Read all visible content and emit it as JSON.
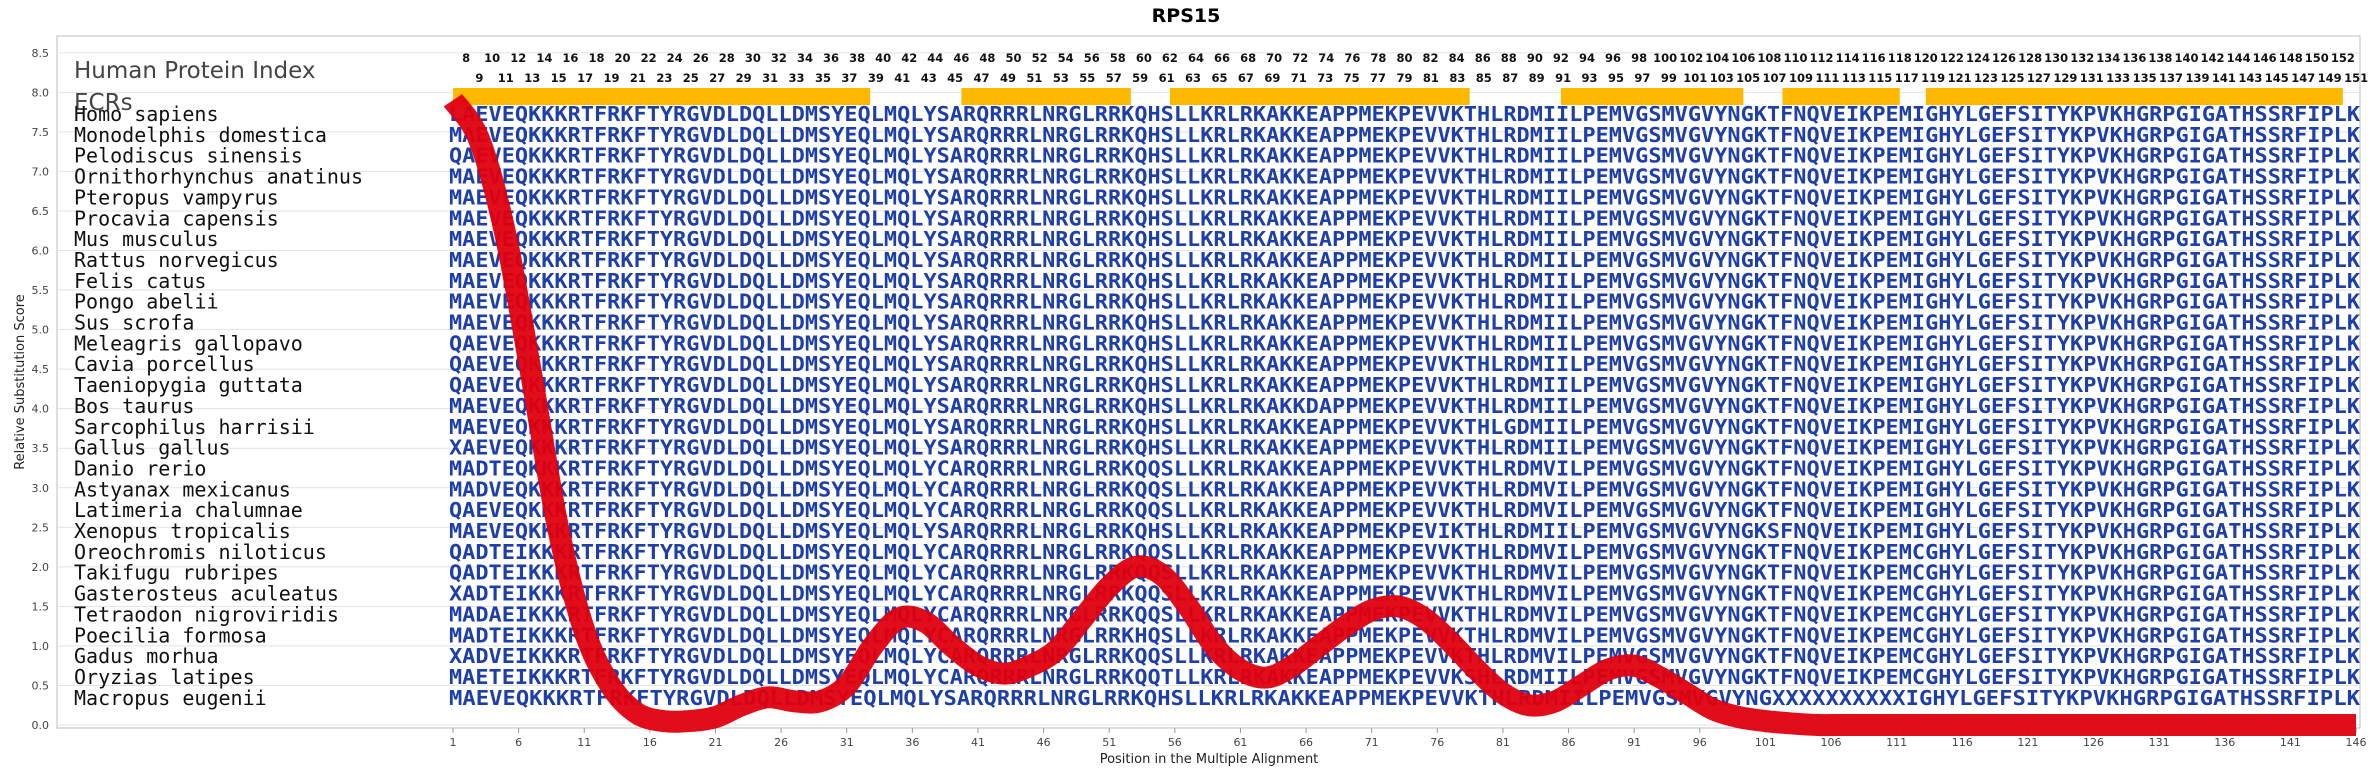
{
  "chart_data": {
    "type": "line",
    "title": "RPS15",
    "xlabel": "Position in the Multiple Alignment",
    "ylabel": "Relative Substitution Score",
    "ylim": [
      0,
      8.7
    ],
    "xlim": [
      1,
      146
    ],
    "grid": true,
    "yticks": [
      "0.0",
      "0.5",
      "1.0",
      "1.5",
      "2.0",
      "2.5",
      "3.0",
      "3.5",
      "4.0",
      "4.5",
      "5.0",
      "5.5",
      "6.0",
      "6.5",
      "7.0",
      "7.5",
      "8.0",
      "8.5"
    ],
    "xticks": [
      "1",
      "6",
      "11",
      "16",
      "21",
      "26",
      "31",
      "36",
      "41",
      "46",
      "51",
      "56",
      "61",
      "66",
      "71",
      "76",
      "81",
      "86",
      "91",
      "96",
      "101",
      "106",
      "111",
      "116",
      "121",
      "126",
      "131",
      "136",
      "141",
      "146"
    ],
    "header_label": "Human Protein Index",
    "ecr_label": "ECRs",
    "position_numbers_top": [
      "8",
      "10",
      "12",
      "14",
      "16",
      "18",
      "20",
      "22",
      "24",
      "26",
      "28",
      "30",
      "32",
      "34",
      "36",
      "38",
      "40",
      "42",
      "44",
      "46",
      "48",
      "50",
      "52",
      "54",
      "56",
      "58",
      "60",
      "62",
      "64",
      "66",
      "68",
      "70",
      "72",
      "74",
      "76",
      "78",
      "80",
      "82",
      "84",
      "86",
      "88",
      "90",
      "92",
      "94",
      "96",
      "98",
      "100",
      "102",
      "104",
      "106",
      "108",
      "110",
      "112",
      "114",
      "116",
      "118",
      "120",
      "122",
      "124",
      "126",
      "128",
      "130",
      "132",
      "134",
      "136",
      "138",
      "140",
      "142",
      "144",
      "146",
      "148",
      "150",
      "152"
    ],
    "position_numbers_bottom": [
      "9",
      "11",
      "13",
      "15",
      "17",
      "19",
      "21",
      "23",
      "25",
      "27",
      "29",
      "31",
      "33",
      "35",
      "37",
      "39",
      "41",
      "43",
      "45",
      "47",
      "49",
      "51",
      "53",
      "55",
      "57",
      "59",
      "61",
      "63",
      "65",
      "67",
      "69",
      "71",
      "73",
      "75",
      "77",
      "79",
      "81",
      "83",
      "85",
      "87",
      "89",
      "91",
      "93",
      "95",
      "97",
      "99",
      "101",
      "103",
      "105",
      "107",
      "109",
      "111",
      "113",
      "115",
      "117",
      "119",
      "121",
      "123",
      "125",
      "127",
      "129",
      "131",
      "133",
      "135",
      "137",
      "139",
      "141",
      "143",
      "145",
      "147",
      "149",
      "151"
    ],
    "ecr_regions": [
      [
        7,
        39
      ],
      [
        46,
        59
      ],
      [
        62,
        85
      ],
      [
        92,
        106
      ],
      [
        109,
        118
      ],
      [
        120,
        152
      ]
    ],
    "conservation_curve": {
      "x": [
        1,
        3,
        5,
        7,
        9,
        11,
        13,
        15,
        17,
        19,
        21,
        23,
        25,
        27,
        29,
        31,
        33,
        35,
        37,
        39,
        41,
        43,
        45,
        47,
        49,
        51,
        53,
        55,
        57,
        59,
        61,
        63,
        65,
        67,
        69,
        71,
        73,
        75,
        77,
        79,
        81,
        83,
        85,
        87,
        89,
        91,
        93,
        95,
        97,
        99,
        101,
        103,
        105,
        107,
        109,
        111,
        113,
        115,
        117,
        119,
        121,
        123,
        125,
        127,
        129,
        131,
        133,
        135,
        137,
        139,
        141,
        143,
        146
      ],
      "y": [
        7.9,
        7.4,
        6.2,
        4.4,
        2.5,
        1.2,
        0.5,
        0.15,
        0.05,
        0.05,
        0.1,
        0.25,
        0.35,
        0.3,
        0.3,
        0.5,
        1.0,
        1.35,
        1.3,
        1.0,
        0.75,
        0.65,
        0.75,
        0.95,
        1.35,
        1.75,
        2.0,
        1.9,
        1.5,
        1.0,
        0.7,
        0.6,
        0.75,
        1.0,
        1.25,
        1.45,
        1.5,
        1.35,
        1.05,
        0.7,
        0.4,
        0.25,
        0.3,
        0.5,
        0.7,
        0.75,
        0.6,
        0.4,
        0.2,
        0.1,
        0.05,
        0.02,
        0.0,
        0.0,
        0.0,
        0.0,
        0.0,
        0.0,
        0.0,
        0.0,
        0.0,
        0.0,
        0.0,
        0.0,
        0.0,
        0.0,
        0.0,
        0.0,
        0.0,
        0.0,
        0.0,
        0.0,
        0.0
      ]
    },
    "species": [
      {
        "name": "Homo sapiens",
        "seq": "LAEVEQKKKRTFRKFTYRGVDLDQLLDMSYEQLMQLYSARQRRRLNRGLRRKQHSLLKRLRKAKKEAPPMEKPEVVKTHLRDMIILPEMVGSMVGVYNGKTFNQVEIKPEMIGHYLGEFSITYKPVKHGRPGIGATHSSRFIPLK"
      },
      {
        "name": "Monodelphis domestica",
        "seq": "MAEVEQKKKRTFRKFTYRGVDLDQLLDMSYEQLMQLYSARQRRRLNRGLRRKQHSLLKRLRKAKKEAPPMEKPEVVKTHLRDMIILPEMVGSMVGVYNGKTFNQVEIKPEMIGHYLGEFSITYKPVKHGRPGIGATHSSRFIPLK"
      },
      {
        "name": "Pelodiscus sinensis",
        "seq": "QAEVEQKKKRTFRKFTYRGVDLDQLLDMSYEQLMQLYSARQRRRLNRGLRRKQHSLLKRLRKAKKEAPPMEKPEVVKTHLRDMIILPEMVGSMVGVYNGKTFNQVEIKPEMIGHYLGEFSITYKPVKHGRPGIGATHSSRFIPLK"
      },
      {
        "name": "Ornithorhynchus anatinus",
        "seq": "MAEVEQKKKRTFRKFTYRGVDLDQLLDMSYEQLMQLYSARQRRRLNRGLRRKQHSLLKRLRKAKKEAPPMEKPEVVKTHLRDMIILPEMVGSMVGVYNGKTFNQVEIKPEMIGHYLGEFSITYKPVKHGRPGIGATHSSRFIPLK"
      },
      {
        "name": "Pteropus vampyrus",
        "seq": "MAEVEQKKKRTFRKFTYRGVDLDQLLDMSYEQLMQLYSARQRRRLNRGLRRKQHSLLKRLRKAKKEAPPMEKPEVVKTHLRDMIILPEMVGSMVGVYNGKTFNQVEIKPEMIGHYLGEFSITYKPVKHGRPGIGATHSSRFIPLK"
      },
      {
        "name": "Procavia capensis",
        "seq": "MAEVEQKKKRTFRKFTYRGVDLDQLLDMSYEQLMQLYSARQRRRLNRGLRRKQHSLLKRLRKAKKEAPPMEKPEVVKTHLRDMIILPEMVGSMVGVYNGKTFNQVEIKPEMIGHYLGEFSITYKPVKHGRPGIGATHSSRFIPLK"
      },
      {
        "name": "Mus musculus",
        "seq": "MAEVEQKKKRTFRKFTYRGVDLDQLLDMSYEQLMQLYSARQRRRLNRGLRRKQHSLLKRLRKAKKEAPPMEKPEVVKTHLRDMIILPEMVGSMVGVYNGKTFNQVEIKPEMIGHYLGEFSITYKPVKHGRPGIGATHSSRFIPLK"
      },
      {
        "name": "Rattus norvegicus",
        "seq": "MAEVEQKKKRTFRKFTYRGVDLDQLLDMSYEQLMQLYSARQRRRLNRGLRRKQHSLLKRLRKAKKEAPPMEKPEVVKTHLRDMIILPEMVGSMVGVYNGKTFNQVEIKPEMIGHYLGEFSITYKPVKHGRPGIGATHSSRFIPLK"
      },
      {
        "name": "Felis catus",
        "seq": "MAEVEQKKKRTFRKFTYRGVDLDQLLDMSYEQLMQLYSARQRRRLNRGLRRKQHSLLKRLRKAKKEAPPMEKPEVVKTHLRDMIILPEMVGSMVGVYNGKTFNQVEIKPEMIGHYLGEFSITYKPVKHGRPGIGATHSSRFIPLK"
      },
      {
        "name": "Pongo abelii",
        "seq": "MAEVEQKKKRTFRKFTYRGVDLDQLLDMSYEQLMQLYSARQRRRLNRGLRRKQHSLLKRLRKAKKEAPPMEKPEVVKTHLRDMIILPEMVGSMVGVYNGKTFNQVEIKPEMIGHYLGEFSITYKPVKHGRPGIGATHSSRFIPLK"
      },
      {
        "name": "Sus scrofa",
        "seq": "MAEVEQKKKRTFRKFTYRGVDLDQLLDMSYEQLMQLYSARQRRRLNRGLRRKQHSLLKRLRKAKKEAPPMEKPEVVKTHLRDMIILPEMVGSMVGVYNGKTFNQVEIKPEMIGHYLGEFSITYKPVKHGRPGIGATHSSRFIPLK"
      },
      {
        "name": "Meleagris gallopavo",
        "seq": "QAEVEQKKKRTFRKFTYRGVDLDQLLDMSYEQLMQLYSARQRRRLNRGLRRKQHSLLKRLRKAKKEAPPMEKPEVVKTHLRDMIILPEMVGSMVGVYNGKTFNQVEIKPEMIGHYLGEFSITYKPVKHGRPGIGATHSSRFIPLK"
      },
      {
        "name": "Cavia porcellus",
        "seq": "QAEVEQKKKRTFRKFTYRGVDLDQLLDMSYEQLMQLYSARQRRRLNRGLRRKQHSLLKRLRKAKKEAPPMEKPEVVKTHLRDMIILPEMVGSMVGVYNGKTFNQVEIKPEMIGHYLGEFSITYKPVKHGRPGIGATHSSRFIPLK"
      },
      {
        "name": "Taeniopygia guttata",
        "seq": "QAEVEQKKKRTFRKFTYRGVDLDQLLDMSYEQLMQLYSARQRRRLNRGLRRKQHSLLKRLRKAKKEAPPMEKPEVVKTHLRDMIILPEMVGSMVGVYNGKTFNQVEIKPEMIGHYLGEFSITYKPVKHGRPGIGATHSSRFIPLK"
      },
      {
        "name": "Bos taurus",
        "seq": "MAEVEQKKKRTFRKFTYRGVDLDQLLDMSYEQLMQLYSARQRRRLNRGLRRKQHSLLKRLRKAKKDAPPMEKPEVVKTHLRDMIILPEMVGSMVGVYNGKTFNQVEIKPEMIGHYLGEFSITYKPVKHGRPGIGATHSSRFIPLK"
      },
      {
        "name": "Sarcophilus harrisii",
        "seq": "MAEVEQKKKRTFRKFTYRGVDLDQLLDMSYEQLMQLYSARQRRRLNRGLRRKQHSLLKRLRKAKKEAPPMEKPEVVKTHLGDMIILPEMVGSMVGVYNGKTFNQVEIKPEMIGHYLGEFSITYKPVKHGRPGIGATHSSRFIPLK"
      },
      {
        "name": "Gallus gallus",
        "seq": "XAEVEQKKKRTFRKFTYRGVDLDQLLDMSYEQLMQLYSARQRRRLNRGLRRKQHSLLKRLRKAKKEAPPMEKPEVVKTHLRDMIILPEMVGSMVGVYNGKTFNQVEIKPEMIGHYLGEFSITYKPVKHGRPGIGATHSSRFIPLK"
      },
      {
        "name": "Danio rerio",
        "seq": "MADTEQKKKRTFRKFTYRGVDLDQLLDMSYEQLMQLYCARQRRRLNRGLRRKQQSLLKRLRKAKKEAPPMEKPEVVKTHLRDMVILPEMVGSMVGVYNGKTFNQVEIKPEMIGHYLGEFSITYKPVKHGRPGIGATHSSRFIPLK"
      },
      {
        "name": "Astyanax mexicanus",
        "seq": "MADVEQKKKRTFRKFTYRGVDLDQLLDMSYEQLMQLYCARQRRRLNRGLRRKQQSLLKRLRKAKKEAPPMEKPEVVKTHLRDMVILPEMVGSMVGVYNGKTFNQVEIKPEMIGHYLGEFSITYKPVKHGRPGIGATHSSRFIPLK"
      },
      {
        "name": "Latimeria chalumnae",
        "seq": "QAEVEQKKKRTFRKFTYRGVDLDQLLDMSYEQLMQLYCARQRRRLNRGLRRKQQSLLKRLRKAKKEAPPMEKPEVVKTHLRDMVILPEMVGSMVGVYNGKTFNQVEIKPEMIGHYLGEFSITYKPVKHGRPGIGATHSSRFIPLK"
      },
      {
        "name": "Xenopus tropicalis",
        "seq": "MAEVEQKKKRTFRKFTYRGVDLDQLLDMSYEQLMQLYSARQRRRLNRGLRRKQHSLLKRLRKAKKEAPPMEKPEVIKTHLRDMIILPEMVGSMVGVYNGKSFNQVEIKPEMIGHYLGEFSITYKPVKHGRPGIGATHSSRFIPLK"
      },
      {
        "name": "Oreochromis niloticus",
        "seq": "QADTEIKKKRTFRKFTYRGVDLDQLLDMSYEQLMQLYCARQRRRLNRGLRRKQQSLLKRLRKAKKEAPPMEKPEVVKTHLRDMVILPEMVGSMVGVYNGKTFNQVEIKPEMCGHYLGEFSITYKPVKHGRPGIGATHSSRFIPLK"
      },
      {
        "name": "Takifugu rubripes",
        "seq": "QADTEIKKKRTFRKFTYRGVDLDQLLDMSYEQLMQLYCARQRRRLNRGLRRKQQSLLKRLRKAKKEAPPMEKPEVVKTHLRDMVILPEMVGSMVGVYNGKTFNQVEIKPEMCGHYLGEFSITYKPVKHGRPGIGATHSSRFIPLK"
      },
      {
        "name": "Gasterosteus aculeatus",
        "seq": "XADTEIKKKRTFRKFTYRGVDLDQLLDMSYEQLMQLYCARQRRRLNRGLRRKQQSLLKRLRKAKKEAPPMEKPEVVKTHLRDMVILPEMVGSMVGVYNGKTFNQVEIKPEMCGHYLGEFSITYKPVKHGRPGIGATHSSRFIPLK"
      },
      {
        "name": "Tetraodon nigroviridis",
        "seq": "MADAEIKKKRTFRKFTYRGVDLDQLLDMSYEQLMQLYCARQRRRLNRGLRRKQQSLLKRLRKAKKEAPPMEKPEVVKTHLRDMVILPEMVGSMVGVYNGKTFNQVEIKPEMCGHYLGEFSITYKPVKHGRPGIGATHSSRFIPLK"
      },
      {
        "name": "Poecilia formosa",
        "seq": "MADTEIKKKRTFRKFTYRGVDLDQLLDMSYEQLMQLYCARQRRRLNRGLRRKHQSLLKRLRKAKKEAPPMEKPEVVKTHLRDMVILPEMVGSMVGVYNGKTFNQVEIKPEMCGHYLGEFSITYKPVKHGRPGIGATHSSRFIPLK"
      },
      {
        "name": "Gadus morhua",
        "seq": "XADVEIKKKRTFRKFTYRGVDLDQLLDMSYEQLMQLYCARQRRRLNRGLRRKQQSLLKRLRKAKKEAPPMEKPEVVKTHLRDMVILPEMVGSMVGVYNGKTFNQVEIKPEMCGHYLGEFSITYKPVKHGRPGIGATHSSRFIPLK"
      },
      {
        "name": "Oryzias latipes",
        "seq": "MAETEIKKKRTFRKFTYRGVDLDQLLDMSYEQLMQLYCARQRRRLNRGLRRKQQTLLKRLRKAKKEAPPMEKPEVVKSHLRDMIILPEMVGSMVGVYNGKTFNQVEIKPEMCGHYLGEFSITYKPVKHGRPGIGATHSSRFIPLK"
      },
      {
        "name": "Macropus eugenii",
        "seq": "MAEVEQKKKRTFRKFTYRGVDLDQLLDMSYEQLMQLYSARQRRRLNRGLRRKQHSLLKRLRKAKKEAPPMEKPEVVKTHLRDMIILPEMVGSMVGVYNGXXXXXXXXXXIGHYLGEFSITYKPVKHGRPGIGATHSSRFIPLK"
      }
    ],
    "colors": {
      "curve": "#e0000f",
      "ecr": "#ffb800",
      "residue": "#1f3fa8",
      "residue_variant": "#4a8a78",
      "grid": "#e2e2e2"
    }
  }
}
